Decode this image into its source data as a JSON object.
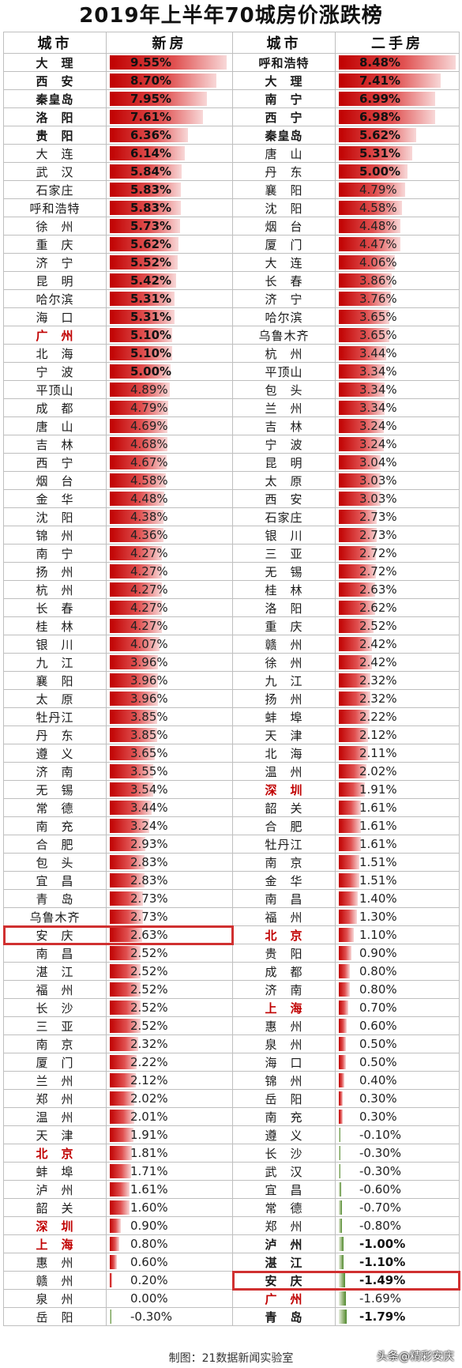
{
  "title": "2019年上半年70城房价涨跌榜",
  "headers": {
    "city": "城市",
    "new": "新房",
    "city2": "城市",
    "second": "二手房"
  },
  "credit": "制图：21数据新闻实验室",
  "watermark": "头条@精彩安庆",
  "colors": {
    "positive_bar": "#c00000",
    "negative_bar": "#4f8a2f",
    "highlight_box": "#d03030",
    "highlight_city": "#c00000"
  },
  "highlight_city": "安庆",
  "chart_data": {
    "type": "table",
    "title": "2019年上半年70城房价涨跌榜",
    "unit": "%",
    "new_home": [
      [
        "大　理",
        9.55
      ],
      [
        "西　安",
        8.7
      ],
      [
        "秦皇岛",
        7.95
      ],
      [
        "洛　阳",
        7.61
      ],
      [
        "贵　阳",
        6.36
      ],
      [
        "大　连",
        6.14
      ],
      [
        "武　汉",
        5.84
      ],
      [
        "石家庄",
        5.83
      ],
      [
        "呼和浩特",
        5.83
      ],
      [
        "徐　州",
        5.73
      ],
      [
        "重　庆",
        5.62
      ],
      [
        "济　宁",
        5.52
      ],
      [
        "昆　明",
        5.42
      ],
      [
        "哈尔滨",
        5.31
      ],
      [
        "海　口",
        5.31
      ],
      [
        "广　州",
        5.1
      ],
      [
        "北　海",
        5.1
      ],
      [
        "宁　波",
        5.0
      ],
      [
        "平顶山",
        4.89
      ],
      [
        "成　都",
        4.79
      ],
      [
        "唐　山",
        4.69
      ],
      [
        "吉　林",
        4.68
      ],
      [
        "西　宁",
        4.67
      ],
      [
        "烟　台",
        4.58
      ],
      [
        "金　华",
        4.48
      ],
      [
        "沈　阳",
        4.38
      ],
      [
        "锦　州",
        4.36
      ],
      [
        "南　宁",
        4.27
      ],
      [
        "扬　州",
        4.27
      ],
      [
        "杭　州",
        4.27
      ],
      [
        "长　春",
        4.27
      ],
      [
        "桂　林",
        4.27
      ],
      [
        "银　川",
        4.07
      ],
      [
        "九　江",
        3.96
      ],
      [
        "襄　阳",
        3.96
      ],
      [
        "太　原",
        3.96
      ],
      [
        "牡丹江",
        3.85
      ],
      [
        "丹　东",
        3.85
      ],
      [
        "遵　义",
        3.65
      ],
      [
        "济　南",
        3.55
      ],
      [
        "无　锡",
        3.54
      ],
      [
        "常　德",
        3.44
      ],
      [
        "南　充",
        3.24
      ],
      [
        "合　肥",
        2.93
      ],
      [
        "包　头",
        2.83
      ],
      [
        "宜　昌",
        2.83
      ],
      [
        "青　岛",
        2.73
      ],
      [
        "乌鲁木齐",
        2.73
      ],
      [
        "安　庆",
        2.63
      ],
      [
        "南　昌",
        2.52
      ],
      [
        "湛　江",
        2.52
      ],
      [
        "福　州",
        2.52
      ],
      [
        "长　沙",
        2.52
      ],
      [
        "三　亚",
        2.52
      ],
      [
        "南　京",
        2.32
      ],
      [
        "厦　门",
        2.22
      ],
      [
        "兰　州",
        2.12
      ],
      [
        "郑　州",
        2.02
      ],
      [
        "温　州",
        2.01
      ],
      [
        "天　津",
        1.91
      ],
      [
        "北　京",
        1.81
      ],
      [
        "蚌　埠",
        1.71
      ],
      [
        "泸　州",
        1.61
      ],
      [
        "韶　关",
        1.6
      ],
      [
        "深　圳",
        0.9
      ],
      [
        "上　海",
        0.8
      ],
      [
        "惠　州",
        0.6
      ],
      [
        "赣　州",
        0.2
      ],
      [
        "泉　州",
        0.0
      ],
      [
        "岳　阳",
        -0.3
      ]
    ],
    "second_hand": [
      [
        "呼和浩特",
        8.48
      ],
      [
        "大　理",
        7.41
      ],
      [
        "南　宁",
        6.99
      ],
      [
        "西　宁",
        6.98
      ],
      [
        "秦皇岛",
        5.62
      ],
      [
        "唐　山",
        5.31
      ],
      [
        "丹　东",
        5.0
      ],
      [
        "襄　阳",
        4.79
      ],
      [
        "沈　阳",
        4.58
      ],
      [
        "烟　台",
        4.48
      ],
      [
        "厦　门",
        4.47
      ],
      [
        "大　连",
        4.06
      ],
      [
        "长　春",
        3.86
      ],
      [
        "济　宁",
        3.76
      ],
      [
        "哈尔滨",
        3.65
      ],
      [
        "乌鲁木齐",
        3.65
      ],
      [
        "杭　州",
        3.44
      ],
      [
        "平顶山",
        3.34
      ],
      [
        "包　头",
        3.34
      ],
      [
        "兰　州",
        3.34
      ],
      [
        "吉　林",
        3.24
      ],
      [
        "宁　波",
        3.24
      ],
      [
        "昆　明",
        3.04
      ],
      [
        "太　原",
        3.03
      ],
      [
        "西　安",
        3.03
      ],
      [
        "石家庄",
        2.73
      ],
      [
        "银　川",
        2.73
      ],
      [
        "三　亚",
        2.72
      ],
      [
        "无　锡",
        2.72
      ],
      [
        "桂　林",
        2.63
      ],
      [
        "洛　阳",
        2.62
      ],
      [
        "重　庆",
        2.52
      ],
      [
        "赣　州",
        2.42
      ],
      [
        "徐　州",
        2.42
      ],
      [
        "九　江",
        2.32
      ],
      [
        "扬　州",
        2.32
      ],
      [
        "蚌　埠",
        2.22
      ],
      [
        "天　津",
        2.12
      ],
      [
        "北　海",
        2.11
      ],
      [
        "温　州",
        2.02
      ],
      [
        "深　圳",
        1.91
      ],
      [
        "韶　关",
        1.61
      ],
      [
        "合　肥",
        1.61
      ],
      [
        "牡丹江",
        1.61
      ],
      [
        "南　京",
        1.51
      ],
      [
        "金　华",
        1.51
      ],
      [
        "南　昌",
        1.4
      ],
      [
        "福　州",
        1.3
      ],
      [
        "北　京",
        1.1
      ],
      [
        "贵　阳",
        0.9
      ],
      [
        "成　都",
        0.8
      ],
      [
        "济　南",
        0.8
      ],
      [
        "上　海",
        0.7
      ],
      [
        "惠　州",
        0.6
      ],
      [
        "泉　州",
        0.5
      ],
      [
        "海　口",
        0.5
      ],
      [
        "锦　州",
        0.4
      ],
      [
        "岳　阳",
        0.3
      ],
      [
        "南　充",
        0.3
      ],
      [
        "遵　义",
        -0.1
      ],
      [
        "长　沙",
        -0.3
      ],
      [
        "武　汉",
        -0.3
      ],
      [
        "宜　昌",
        -0.6
      ],
      [
        "常　德",
        -0.7
      ],
      [
        "郑　州",
        -0.8
      ],
      [
        "泸　州",
        -1.0
      ],
      [
        "湛　江",
        -1.1
      ],
      [
        "安　庆",
        -1.49
      ],
      [
        "广　州",
        -1.69
      ],
      [
        "青　岛",
        -1.79
      ]
    ],
    "bold_new": [
      "大　理",
      "西　安",
      "秦皇岛",
      "洛　阳",
      "贵　阳"
    ],
    "bold_second": [
      "呼和浩特",
      "大　理",
      "南　宁",
      "西　宁",
      "秦皇岛",
      "泸　州",
      "湛　江",
      "安　庆",
      "青　岛"
    ],
    "red_cities": [
      "广　州",
      "北　京",
      "深　圳",
      "上　海"
    ]
  }
}
